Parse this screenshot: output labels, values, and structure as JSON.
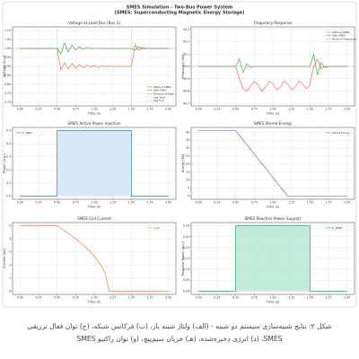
{
  "figure": {
    "title": "SMES Simulation - Two-Bus Power System",
    "subtitle": "(SMES: Superconducting Magnetic Energy Storage)"
  },
  "caption": "شکل ۲: نتایج شبیه‌سازی سیستم دو شینه - (الف) ولتاژ شینه بار، (ب) فرکانس شبکه، (ج) توان فعال تزریقی SMES، (د) انرژی ذخیره‌شده، (هـ) جریان سیم‌پیچ، (و) توان راکتیو SMES",
  "chart_data": [
    {
      "type": "line",
      "title": "Voltage at Load Bus (Bus 2)",
      "xlabel": "Time (s)",
      "ylabel": "Voltage (p.u.)",
      "legend": "lower right",
      "grid": true,
      "x": [
        0,
        0.05,
        0.1,
        0.15,
        0.2,
        0.25,
        0.3,
        0.35,
        0.4,
        0.45,
        0.5,
        0.55,
        0.6,
        0.65,
        0.7,
        0.75,
        0.8,
        0.85,
        0.9,
        0.95,
        1,
        1.05,
        1.1,
        1.15,
        1.2,
        1.25,
        1.3,
        1.35,
        1.4,
        1.45,
        1.5,
        1.55,
        1.6,
        1.65,
        1.7,
        1.75,
        1.8,
        1.85,
        1.9,
        1.95,
        2
      ],
      "series": [
        {
          "name": "Without SMES",
          "color": "#ef6f55",
          "values": [
            1,
            1,
            1,
            1,
            1,
            1,
            1,
            1,
            1,
            1,
            1,
            0.88,
            0.92,
            0.885,
            0.915,
            0.89,
            0.91,
            0.893,
            0.907,
            0.895,
            0.905,
            0.897,
            0.903,
            0.898,
            0.902,
            0.899,
            0.901,
            0.9,
            0.9,
            0.9,
            0.9,
            1.02,
            0.99,
            1.005,
            1,
            1,
            1,
            1,
            1,
            1,
            1
          ]
        },
        {
          "name": "With SMES",
          "color": "#4caf50",
          "values": [
            1,
            1,
            1,
            1,
            1,
            1,
            1,
            1,
            1,
            1,
            1,
            0.97,
            1.03,
            0.98,
            1.02,
            0.99,
            1.01,
            0.995,
            1.005,
            1,
            1,
            1,
            1,
            1,
            1,
            1,
            1,
            1,
            1,
            1,
            1,
            0.99,
            1.01,
            1,
            1,
            1,
            1,
            1,
            1,
            1,
            1
          ]
        }
      ],
      "hlines": [
        {
          "name": "Nominal Voltage",
          "value": 1,
          "color": "#999999"
        }
      ],
      "vlines": [
        {
          "name": "Sag Start",
          "value": 0.5,
          "color": "#bbbbbb"
        },
        {
          "name": "Sag End",
          "value": 1.5,
          "color": "#bbbbbb"
        }
      ],
      "xlim": [
        -0.1,
        2.1
      ],
      "ylim": [
        0.68,
        1.12
      ],
      "xticks": [
        {
          "value": 0,
          "label": "0.00"
        },
        {
          "value": 0.25,
          "label": "0.25"
        },
        {
          "value": 0.5,
          "label": "0.50"
        },
        {
          "value": 0.75,
          "label": "0.75"
        },
        {
          "value": 1,
          "label": "1.00"
        },
        {
          "value": 1.25,
          "label": "1.25"
        },
        {
          "value": 1.5,
          "label": "1.50"
        },
        {
          "value": 1.75,
          "label": "1.75"
        },
        {
          "value": 2,
          "label": "2.00"
        }
      ],
      "yticks": [
        {
          "value": 0.7,
          "label": "0.70"
        },
        {
          "value": 0.75,
          "label": "0.75"
        },
        {
          "value": 0.8,
          "label": "0.80"
        },
        {
          "value": 0.85,
          "label": "0.85"
        },
        {
          "value": 0.9,
          "label": "0.90"
        },
        {
          "value": 0.95,
          "label": "0.95"
        },
        {
          "value": 1,
          "label": "1.00"
        },
        {
          "value": 1.05,
          "label": "1.05"
        },
        {
          "value": 1.1,
          "label": "1.10"
        }
      ]
    },
    {
      "type": "line",
      "title": "Frequency Response",
      "xlabel": "Time (s)",
      "ylabel": "Frequency (Hz)",
      "legend": "upper right",
      "grid": true,
      "x": [
        0,
        0.05,
        0.1,
        0.15,
        0.2,
        0.25,
        0.3,
        0.35,
        0.4,
        0.45,
        0.5,
        0.55,
        0.6,
        0.65,
        0.7,
        0.75,
        0.8,
        0.85,
        0.9,
        0.95,
        1,
        1.05,
        1.1,
        1.15,
        1.2,
        1.25,
        1.3,
        1.35,
        1.4,
        1.45,
        1.5,
        1.55,
        1.6,
        1.65,
        1.7,
        1.75,
        1.8,
        1.85,
        1.9,
        1.95,
        2
      ],
      "series": [
        {
          "name": "Without SMES",
          "color": "#ef6f55",
          "values": [
            50,
            50,
            50,
            50,
            50,
            50,
            50,
            50,
            50,
            50,
            50,
            49.9,
            49.82,
            49.8,
            49.84,
            49.88,
            49.85,
            49.8,
            49.83,
            49.88,
            49.86,
            49.81,
            49.83,
            49.88,
            49.86,
            49.81,
            49.83,
            49.88,
            49.86,
            49.82,
            49.85,
            50,
            50.06,
            49.98,
            50,
            50,
            50,
            50,
            50,
            50,
            50
          ]
        },
        {
          "name": "With SMES",
          "color": "#4caf50",
          "values": [
            50,
            50,
            50,
            50,
            50,
            50,
            50,
            50,
            50,
            50,
            50,
            50.06,
            49.95,
            50.02,
            49.99,
            50,
            50,
            50,
            50,
            50,
            50,
            50,
            50,
            50,
            50,
            50,
            50,
            50,
            50,
            50,
            50,
            50.1,
            49.93,
            50.03,
            49.99,
            50,
            50,
            50,
            50,
            50,
            50
          ]
        }
      ],
      "hlines": [
        {
          "name": "Nominal Frequency",
          "value": 50,
          "color": "#999999"
        }
      ],
      "xlim": [
        -0.1,
        2.1
      ],
      "ylim": [
        49.68,
        50.32
      ],
      "xticks": [
        {
          "value": 0,
          "label": "0.00"
        },
        {
          "value": 0.25,
          "label": "0.25"
        },
        {
          "value": 0.5,
          "label": "0.50"
        },
        {
          "value": 0.75,
          "label": "0.75"
        },
        {
          "value": 1,
          "label": "1.00"
        },
        {
          "value": 1.25,
          "label": "1.25"
        },
        {
          "value": 1.5,
          "label": "1.50"
        },
        {
          "value": 1.75,
          "label": "1.75"
        },
        {
          "value": 2,
          "label": "2.00"
        }
      ],
      "yticks": [
        49.7,
        49.8,
        49.9,
        {
          "value": 50,
          "label": "50.0"
        },
        50.1,
        50.2,
        50.3
      ]
    },
    {
      "type": "area",
      "title": "SMES Active Power Injection",
      "xlabel": "Time (s)",
      "ylabel": "Power (p.u.)",
      "legend": "upper left",
      "grid": true,
      "x": [
        0,
        0.5,
        0.5,
        1.5,
        1.5,
        2
      ],
      "series": [
        {
          "name": "P_SMES",
          "color": "#2f7fc1",
          "fill": "#cfe3f6",
          "values": [
            0,
            0,
            0.5,
            0.5,
            0,
            0
          ]
        }
      ],
      "xlim": [
        -0.1,
        2.1
      ],
      "ylim": [
        -0.025,
        0.525
      ],
      "xticks": [
        {
          "value": 0,
          "label": "0.00"
        },
        {
          "value": 0.25,
          "label": "0.25"
        },
        {
          "value": 0.5,
          "label": "0.50"
        },
        {
          "value": 0.75,
          "label": "0.75"
        },
        {
          "value": 1,
          "label": "1.00"
        },
        {
          "value": 1.25,
          "label": "1.25"
        },
        {
          "value": 1.5,
          "label": "1.50"
        },
        {
          "value": 1.75,
          "label": "1.75"
        },
        {
          "value": 2,
          "label": "2.00"
        }
      ],
      "yticks": [
        {
          "value": 0,
          "label": "0.0"
        },
        0.1,
        0.2,
        0.3,
        0.4,
        0.5
      ]
    },
    {
      "type": "line",
      "title": "SMES Stored Energy",
      "xlabel": "Time (s)",
      "ylabel": "Energy (MJ)",
      "legend": "upper right",
      "grid": true,
      "x": [
        0,
        0.05,
        0.1,
        0.15,
        0.2,
        0.25,
        0.3,
        0.35,
        0.4,
        0.45,
        0.5,
        0.55,
        0.6,
        0.65,
        0.7,
        0.75,
        0.8,
        0.85,
        0.9,
        0.95,
        1,
        1.05,
        1.1,
        1.15,
        1.2,
        1.25,
        1.3,
        1.35,
        1.4,
        1.45,
        1.5,
        1.55,
        1.6,
        1.65,
        1.7,
        1.75,
        1.8,
        1.85,
        1.9,
        1.95,
        2
      ],
      "series": [
        {
          "name": "Stored Energy",
          "color": "#8a6aa8",
          "values": [
            41,
            41,
            41,
            41,
            41,
            41,
            41,
            41,
            41,
            41,
            41,
            38.07,
            35.14,
            32.21,
            29.29,
            26.36,
            23.43,
            20.5,
            17.57,
            14.64,
            11.71,
            8.79,
            5.86,
            2.93,
            0,
            0,
            0,
            0,
            0,
            0,
            0,
            0,
            0,
            0,
            0,
            0,
            0,
            0,
            0,
            0,
            0
          ]
        }
      ],
      "xlim": [
        -0.1,
        2.1
      ],
      "ylim": [
        -2,
        43
      ],
      "xticks": [
        {
          "value": 0,
          "label": "0.00"
        },
        {
          "value": 0.25,
          "label": "0.25"
        },
        {
          "value": 0.5,
          "label": "0.50"
        },
        {
          "value": 0.75,
          "label": "0.75"
        },
        {
          "value": 1,
          "label": "1.00"
        },
        {
          "value": 1.25,
          "label": "1.25"
        },
        {
          "value": 1.5,
          "label": "1.50"
        },
        {
          "value": 1.75,
          "label": "1.75"
        },
        {
          "value": 2,
          "label": "2.00"
        }
      ],
      "yticks": [
        0,
        5,
        10,
        15,
        20,
        25,
        30,
        35,
        40
      ]
    },
    {
      "type": "line",
      "title": "SMES Coil Current",
      "xlabel": "Time (s)",
      "ylabel": "Current (kA)",
      "legend": "upper right",
      "grid": true,
      "x": [
        0,
        0.05,
        0.1,
        0.15,
        0.2,
        0.25,
        0.3,
        0.35,
        0.4,
        0.45,
        0.5,
        0.55,
        0.6,
        0.65,
        0.7,
        0.75,
        0.8,
        0.85,
        0.9,
        0.95,
        1,
        1.05,
        1.1,
        1.15,
        1.2,
        1.25,
        1.3,
        1.35,
        1.4,
        1.45,
        1.5,
        1.55,
        1.6,
        1.65,
        1.7,
        1.75,
        1.8,
        1.85,
        1.9,
        1.95,
        2
      ],
      "series": [
        {
          "name": "I_coil",
          "color": "#e9813f",
          "values": [
            5,
            5,
            5,
            5,
            5,
            5,
            5,
            5,
            5,
            5,
            5,
            4.82,
            4.63,
            4.44,
            4.23,
            4.01,
            3.78,
            3.54,
            3.27,
            2.99,
            2.67,
            2.31,
            1.89,
            1.34,
            0,
            0,
            0,
            0,
            0,
            0,
            0,
            0,
            0,
            0,
            0,
            0,
            0,
            0,
            0,
            0,
            0
          ]
        }
      ],
      "xlim": [
        -0.1,
        2.1
      ],
      "ylim": [
        -0.25,
        5.25
      ],
      "xticks": [
        {
          "value": 0,
          "label": "0.00"
        },
        {
          "value": 0.25,
          "label": "0.25"
        },
        {
          "value": 0.5,
          "label": "0.50"
        },
        {
          "value": 0.75,
          "label": "0.75"
        },
        {
          "value": 1,
          "label": "1.00"
        },
        {
          "value": 1.25,
          "label": "1.25"
        },
        {
          "value": 1.5,
          "label": "1.50"
        },
        {
          "value": 1.75,
          "label": "1.75"
        },
        {
          "value": 2,
          "label": "2.00"
        }
      ],
      "yticks": [
        0,
        1,
        2,
        3,
        4,
        5
      ]
    },
    {
      "type": "area",
      "title": "SMES Reactive Power Support",
      "xlabel": "Time (s)",
      "ylabel": "Reactive Power (p.u.)",
      "legend": "upper right",
      "grid": true,
      "x": [
        0,
        0.5,
        0.5,
        1.5,
        1.5,
        2
      ],
      "series": [
        {
          "name": "Q_SMES",
          "color": "#26a96c",
          "fill": "#b3e6d3",
          "values": [
            0,
            0,
            0.3,
            0.3,
            0,
            0
          ]
        }
      ],
      "xlim": [
        -0.1,
        2.1
      ],
      "ylim": [
        -0.015,
        0.315
      ],
      "xticks": [
        {
          "value": 0,
          "label": "0.00"
        },
        {
          "value": 0.25,
          "label": "0.25"
        },
        {
          "value": 0.5,
          "label": "0.50"
        },
        {
          "value": 0.75,
          "label": "0.75"
        },
        {
          "value": 1,
          "label": "1.00"
        },
        {
          "value": 1.25,
          "label": "1.25"
        },
        {
          "value": 1.5,
          "label": "1.50"
        },
        {
          "value": 1.75,
          "label": "1.75"
        },
        {
          "value": 2,
          "label": "2.00"
        }
      ],
      "yticks": [
        {
          "value": 0,
          "label": "0.00"
        },
        {
          "value": 0.05,
          "label": "0.05"
        },
        {
          "value": 0.1,
          "label": "0.10"
        },
        {
          "value": 0.15,
          "label": "0.15"
        },
        {
          "value": 0.2,
          "label": "0.20"
        },
        {
          "value": 0.25,
          "label": "0.25"
        },
        {
          "value": 0.3,
          "label": "0.30"
        }
      ]
    }
  ]
}
